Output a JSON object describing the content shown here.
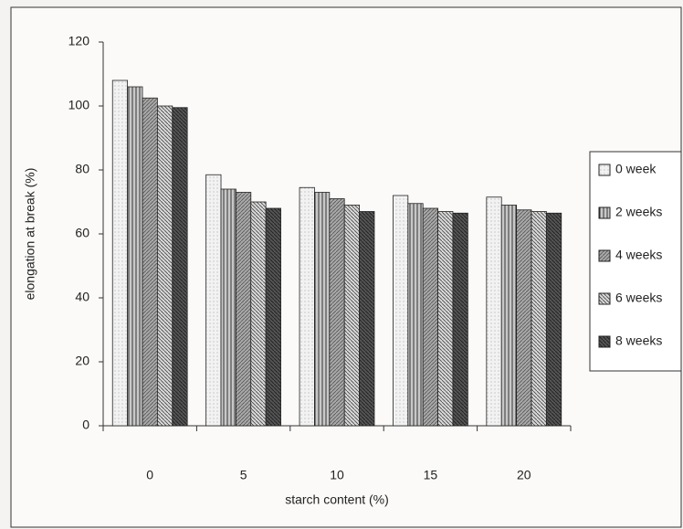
{
  "chart_data": {
    "type": "bar",
    "x_label": "starch content (%)",
    "y_label": "elongation at break (%)",
    "categories": [
      "0",
      "5",
      "10",
      "15",
      "20"
    ],
    "series": [
      {
        "name": "0 week",
        "color": "#f2f2f2",
        "values": [
          108,
          78.5,
          74.5,
          72,
          71.5
        ]
      },
      {
        "name": "2 weeks",
        "color": "#c8c8c8",
        "values": [
          106,
          74,
          73,
          69.5,
          69
        ]
      },
      {
        "name": "4 weeks",
        "color": "#a8a8a8",
        "values": [
          102.5,
          73,
          71,
          68,
          67.5
        ]
      },
      {
        "name": "6 weeks",
        "color": "#d8d8d8",
        "values": [
          100,
          70,
          69,
          67,
          67
        ]
      },
      {
        "name": "8 weeks",
        "color": "#555555",
        "values": [
          99.5,
          68,
          67,
          66.5,
          66.5
        ]
      }
    ],
    "ylim": [
      0,
      120
    ],
    "yticks": [
      0,
      20,
      40,
      60,
      80,
      100,
      120
    ]
  }
}
